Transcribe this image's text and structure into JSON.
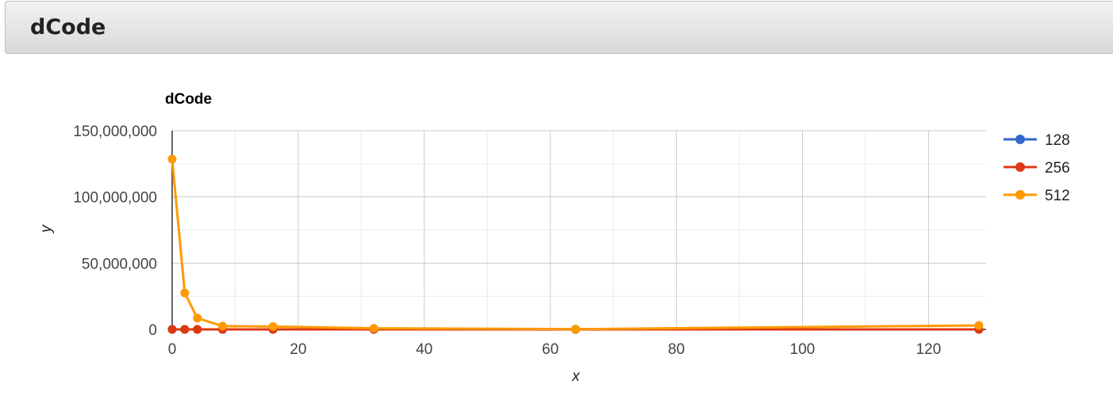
{
  "header": {
    "title": "dCode"
  },
  "chart_data": {
    "type": "line",
    "title": "dCode",
    "xlabel": "x",
    "ylabel": "y",
    "xlim": [
      0,
      128
    ],
    "ylim": [
      0,
      150000000
    ],
    "x_ticks": [
      0,
      20,
      40,
      60,
      80,
      100,
      120
    ],
    "y_ticks": [
      0,
      50000000,
      100000000,
      150000000
    ],
    "x_tick_labels": [
      "0",
      "20",
      "40",
      "60",
      "80",
      "100",
      "120"
    ],
    "y_tick_labels": [
      "0",
      "50,000,000",
      "100,000,000",
      "150,000,000"
    ],
    "grid": true,
    "legend_position": "right",
    "x": [
      0,
      2,
      4,
      8,
      16,
      32,
      64,
      128
    ],
    "series": [
      {
        "name": "128",
        "color": "#3366cc",
        "values": [
          0,
          0,
          0,
          0,
          0,
          0,
          0,
          0
        ]
      },
      {
        "name": "256",
        "color": "#dc3912",
        "values": [
          0,
          0,
          0,
          0,
          0,
          0,
          0,
          0
        ]
      },
      {
        "name": "512",
        "color": "#ff9900",
        "values": [
          128500000,
          27500000,
          8500000,
          2500000,
          2200000,
          800000,
          200000,
          3000000
        ]
      }
    ]
  }
}
